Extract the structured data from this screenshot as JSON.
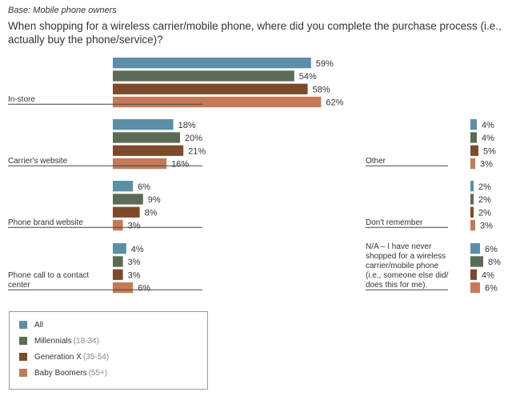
{
  "header": {
    "base": "Base: Mobile phone owners",
    "question": "When shopping for a wireless carrier/mobile phone, where did you complete the purchase process (i.e., actually buy the phone/service)?"
  },
  "colors": {
    "all": "#5b8fa8",
    "millennials": "#5c6b55",
    "genx": "#7d4a2c",
    "boomers": "#c57a57"
  },
  "legend": [
    {
      "name": "All",
      "sub": "",
      "color": "#5b8fa8"
    },
    {
      "name": "Millennials",
      "sub": "(18-34)",
      "color": "#5c6b55"
    },
    {
      "name": "Generation X",
      "sub": "(35-54)",
      "color": "#7d4a2c"
    },
    {
      "name": "Baby Boomers",
      "sub": "(55+)",
      "color": "#c57a57"
    }
  ],
  "chart_data": {
    "type": "bar",
    "orientation": "horizontal",
    "grid": false,
    "legend_position": "bottom-left",
    "series": [
      {
        "name": "All",
        "color": "#5b8fa8"
      },
      {
        "name": "Millennials (18-34)",
        "color": "#5c6b55"
      },
      {
        "name": "Generation X (35-54)",
        "color": "#7d4a2c"
      },
      {
        "name": "Baby Boomers (55+)",
        "color": "#c57a57"
      }
    ],
    "categories": [
      {
        "label": [
          "In-store"
        ],
        "values": [
          59,
          54,
          58,
          62
        ]
      },
      {
        "label": [
          "Carrier's website"
        ],
        "values": [
          18,
          20,
          21,
          16
        ]
      },
      {
        "label": [
          "Phone brand website"
        ],
        "values": [
          6,
          9,
          8,
          3
        ]
      },
      {
        "label": [
          "Phone call to a contact",
          "center"
        ],
        "values": [
          4,
          3,
          3,
          6
        ]
      },
      {
        "label": [
          "Other"
        ],
        "values": [
          4,
          4,
          5,
          3
        ]
      },
      {
        "label": [
          "Don't remember"
        ],
        "values": [
          2,
          2,
          2,
          3
        ]
      },
      {
        "label": [
          "N/A – I have never",
          "shopped for a wireless",
          "carrier/mobile phone",
          "(i.e., someone else did/",
          "does this for me)."
        ],
        "values": [
          6,
          8,
          4,
          6
        ]
      }
    ]
  }
}
